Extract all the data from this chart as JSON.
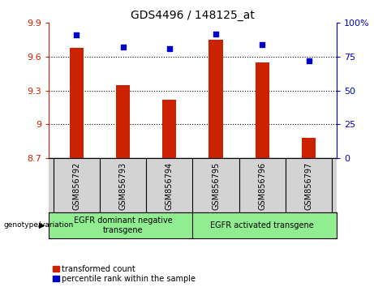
{
  "title": "GDS4496 / 148125_at",
  "categories": [
    "GSM856792",
    "GSM856793",
    "GSM856794",
    "GSM856795",
    "GSM856796",
    "GSM856797"
  ],
  "bar_values": [
    9.68,
    9.35,
    9.22,
    9.75,
    9.55,
    8.88
  ],
  "bar_bottom": 8.7,
  "dot_values": [
    91,
    82,
    81,
    92,
    84,
    72
  ],
  "ylim_left": [
    8.7,
    9.9
  ],
  "ylim_right": [
    0,
    100
  ],
  "yticks_left": [
    8.7,
    9.0,
    9.3,
    9.6,
    9.9
  ],
  "ytick_labels_left": [
    "8.7",
    "9",
    "9.3",
    "9.6",
    "9.9"
  ],
  "yticks_right": [
    0,
    25,
    50,
    75,
    100
  ],
  "ytick_labels_right": [
    "0",
    "25",
    "50",
    "75",
    "100%"
  ],
  "hlines": [
    9.0,
    9.3,
    9.6
  ],
  "bar_color": "#cc2200",
  "dot_color": "#0000cc",
  "group1_label": "EGFR dominant negative\ntransgene",
  "group2_label": "EGFR activated transgene",
  "group1_indices": [
    0,
    1,
    2
  ],
  "group2_indices": [
    3,
    4,
    5
  ],
  "genotype_label": "genotype/variation",
  "legend_bar_label": "transformed count",
  "legend_dot_label": "percentile rank within the sample",
  "group_bg_color": "#90ee90",
  "sample_bg_color": "#d3d3d3",
  "left_axis_color": "#cc2200",
  "right_axis_color": "#0000cc"
}
